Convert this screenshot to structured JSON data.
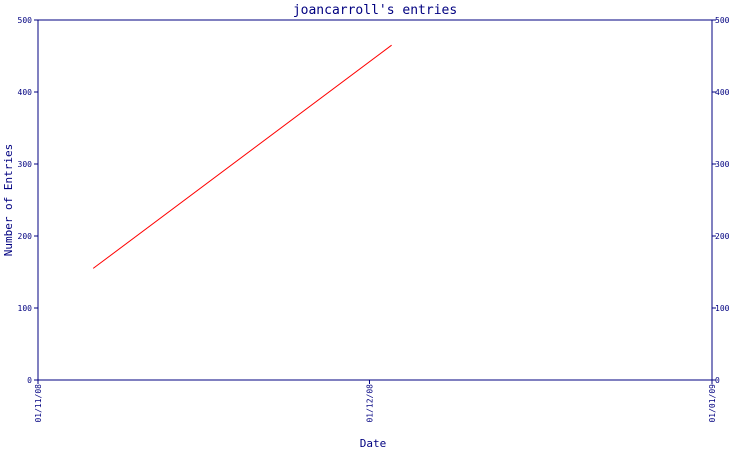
{
  "chart_data": {
    "type": "line",
    "title": "joancarroll's entries",
    "xlabel": "Date",
    "ylabel": "Number of Entries",
    "x_ticks": [
      "01/11/08",
      "01/12/08",
      "01/01/09"
    ],
    "y_ticks": [
      0,
      100,
      200,
      300,
      400,
      500
    ],
    "ylim": [
      0,
      500
    ],
    "xlim": [
      "2008-11-01",
      "2009-01-01"
    ],
    "series": [
      {
        "x": [
          "2008-11-06",
          "2008-12-03"
        ],
        "values": [
          155,
          465
        ]
      }
    ],
    "grid": false,
    "legend": "none",
    "line_color": "#ff0000",
    "axis_color": "#000080"
  }
}
